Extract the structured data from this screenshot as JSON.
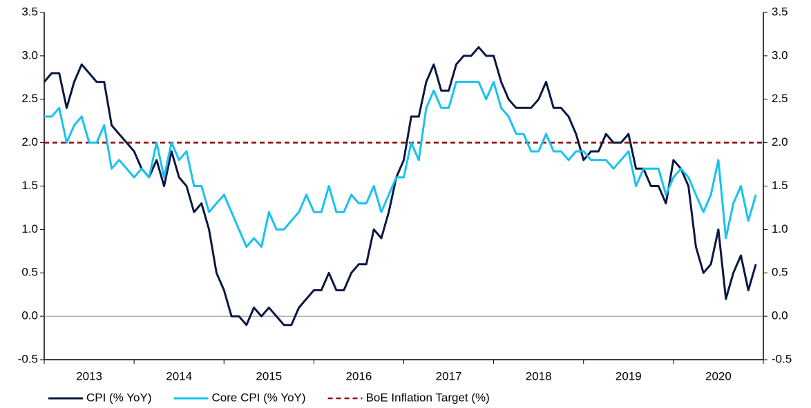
{
  "chart_data": {
    "type": "line",
    "categories": [
      null,
      null,
      null,
      null,
      null,
      null,
      "2013",
      null,
      null,
      null,
      null,
      null,
      null,
      null,
      null,
      null,
      null,
      null,
      "2014",
      null,
      null,
      null,
      null,
      null,
      null,
      null,
      null,
      null,
      null,
      null,
      "2015",
      null,
      null,
      null,
      null,
      null,
      null,
      null,
      null,
      null,
      null,
      null,
      "2016",
      null,
      null,
      null,
      null,
      null,
      null,
      null,
      null,
      null,
      null,
      null,
      "2017",
      null,
      null,
      null,
      null,
      null,
      null,
      null,
      null,
      null,
      null,
      null,
      "2018",
      null,
      null,
      null,
      null,
      null,
      null,
      null,
      null,
      null,
      null,
      null,
      "2019",
      null,
      null,
      null,
      null,
      null,
      null,
      null,
      null,
      null,
      null,
      null,
      "2020",
      null,
      null,
      null,
      null,
      null
    ],
    "series": [
      {
        "name": "CPI (% YoY)",
        "color": "#0b1742",
        "values": [
          2.7,
          2.8,
          2.8,
          2.4,
          2.7,
          2.9,
          2.8,
          2.7,
          2.7,
          2.2,
          2.1,
          2.0,
          1.9,
          1.7,
          1.6,
          1.8,
          1.5,
          1.9,
          1.6,
          1.5,
          1.2,
          1.3,
          1.0,
          0.5,
          0.3,
          0.0,
          0.0,
          -0.1,
          0.1,
          0.0,
          0.1,
          0.0,
          -0.1,
          -0.1,
          0.1,
          0.2,
          0.3,
          0.3,
          0.5,
          0.3,
          0.3,
          0.5,
          0.6,
          0.6,
          1.0,
          0.9,
          1.2,
          1.6,
          1.8,
          2.3,
          2.3,
          2.7,
          2.9,
          2.6,
          2.6,
          2.9,
          3.0,
          3.0,
          3.1,
          3.0,
          3.0,
          2.7,
          2.5,
          2.4,
          2.4,
          2.4,
          2.5,
          2.7,
          2.4,
          2.4,
          2.3,
          2.1,
          1.8,
          1.9,
          1.9,
          2.1,
          2.0,
          2.0,
          2.1,
          1.7,
          1.7,
          1.5,
          1.5,
          1.3,
          1.8,
          1.7,
          1.5,
          0.8,
          0.5,
          0.6,
          1.0,
          0.2,
          0.5,
          0.7,
          0.3,
          0.6
        ]
      },
      {
        "name": "Core CPI (% YoY)",
        "color": "#17c2f0",
        "values": [
          2.3,
          2.3,
          2.4,
          2.0,
          2.2,
          2.3,
          2.0,
          2.0,
          2.2,
          1.7,
          1.8,
          1.7,
          1.6,
          1.7,
          1.6,
          2.0,
          1.6,
          2.0,
          1.8,
          1.9,
          1.5,
          1.5,
          1.2,
          1.3,
          1.4,
          1.2,
          1.0,
          0.8,
          0.9,
          0.8,
          1.2,
          1.0,
          1.0,
          1.1,
          1.2,
          1.4,
          1.2,
          1.2,
          1.5,
          1.2,
          1.2,
          1.4,
          1.3,
          1.3,
          1.5,
          1.2,
          1.4,
          1.6,
          1.6,
          2.0,
          1.8,
          2.4,
          2.6,
          2.4,
          2.4,
          2.7,
          2.7,
          2.7,
          2.7,
          2.5,
          2.7,
          2.4,
          2.3,
          2.1,
          2.1,
          1.9,
          1.9,
          2.1,
          1.9,
          1.9,
          1.8,
          1.9,
          1.9,
          1.8,
          1.8,
          1.8,
          1.7,
          1.8,
          1.9,
          1.5,
          1.7,
          1.7,
          1.7,
          1.4,
          1.6,
          1.7,
          1.6,
          1.4,
          1.2,
          1.4,
          1.8,
          0.9,
          1.3,
          1.5,
          1.1,
          1.4
        ]
      }
    ],
    "target": {
      "name": "BoE Inflation Target (%)",
      "color": "#8b0a0a",
      "value": 2.0
    },
    "ylim": [
      -0.5,
      3.5
    ],
    "yticks": [
      {
        "value": -0.5,
        "label": "-0.5"
      },
      {
        "value": 0,
        "label": "0.0"
      },
      {
        "value": 0.5,
        "label": "0.5"
      },
      {
        "value": 1,
        "label": "1.0"
      },
      {
        "value": 1.5,
        "label": "1.5"
      },
      {
        "value": 2,
        "label": "2.0"
      },
      {
        "value": 2.5,
        "label": "2.5"
      },
      {
        "value": 3,
        "label": "3.0"
      },
      {
        "value": 3.5,
        "label": "3.5"
      }
    ],
    "y2lim": [
      -0.5,
      3.5
    ],
    "y2ticks": [
      {
        "value": -0.5,
        "label": "-0.5"
      },
      {
        "value": 0,
        "label": "0.0"
      },
      {
        "value": 0.5,
        "label": "0.5"
      },
      {
        "value": 1,
        "label": "1.0"
      },
      {
        "value": 1.5,
        "label": "1.5"
      },
      {
        "value": 2,
        "label": "2.0"
      },
      {
        "value": 2.5,
        "label": "2.5"
      },
      {
        "value": 3,
        "label": "3.0"
      },
      {
        "value": 3.5,
        "label": "3.5"
      }
    ],
    "legend": "bottom"
  }
}
